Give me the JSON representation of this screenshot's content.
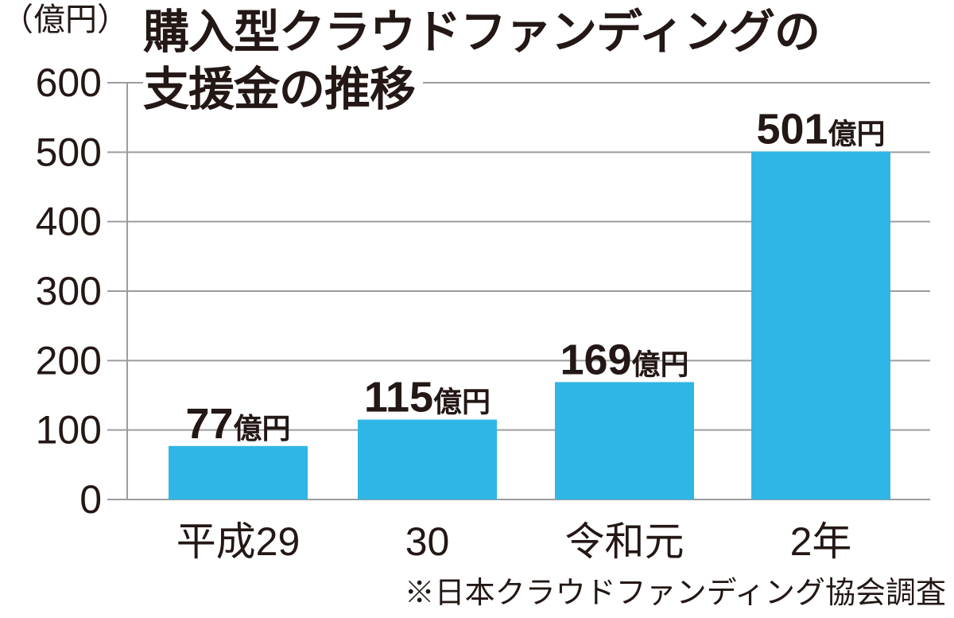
{
  "chart_data": {
    "type": "bar",
    "title_lines": [
      "購入型クラウドファンディングの",
      "支援金の推移"
    ],
    "unit_label": "（億円）",
    "categories": [
      "平成29",
      "30",
      "令和元",
      "2年"
    ],
    "values": [
      77,
      115,
      169,
      501
    ],
    "data_labels": [
      {
        "num": "77",
        "unit": "億円"
      },
      {
        "num": "115",
        "unit": "億円"
      },
      {
        "num": "169",
        "unit": "億円"
      },
      {
        "num": "501",
        "unit": "億円"
      }
    ],
    "ylim": [
      0,
      600
    ],
    "yticks": [
      0,
      100,
      200,
      300,
      400,
      500,
      600
    ],
    "grid": true,
    "bar_color": "#2fb6e6",
    "grid_color": "#9d9d9d",
    "source": "※日本クラウドファンディング協会調査"
  }
}
